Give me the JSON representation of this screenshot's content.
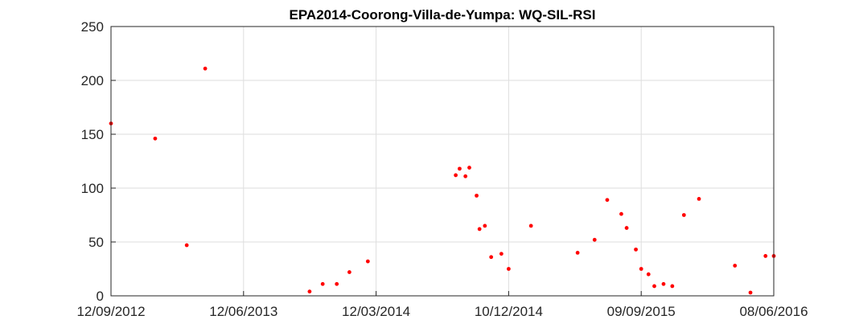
{
  "chart_data": {
    "type": "scatter",
    "title": "EPA2014-Coorong-Villa-de-Yumpa: WQ-SIL-RSI",
    "xlabel": "",
    "ylabel": "",
    "x_axis_type": "date",
    "xlim": [
      "2012-09-12",
      "2016-06-08"
    ],
    "ylim": [
      0,
      250
    ],
    "x_ticks": [
      "2012-09-12",
      "2013-06-12",
      "2014-03-12",
      "2014-12-10",
      "2015-09-09",
      "2016-06-08"
    ],
    "x_tick_labels": [
      "12/09/2012",
      "12/06/2013",
      "12/03/2014",
      "10/12/2014",
      "09/09/2015",
      "08/06/2016"
    ],
    "y_ticks": [
      0,
      50,
      100,
      150,
      200,
      250
    ],
    "y_tick_labels": [
      "0",
      "50",
      "100",
      "150",
      "200",
      "250"
    ],
    "grid": true,
    "marker_color": "#ff0000",
    "series": [
      {
        "points": [
          {
            "x": "2012-09-12",
            "y": 160
          },
          {
            "x": "2012-12-12",
            "y": 146
          },
          {
            "x": "2013-02-15",
            "y": 47
          },
          {
            "x": "2013-03-25",
            "y": 211
          },
          {
            "x": "2013-10-26",
            "y": 4
          },
          {
            "x": "2013-11-22",
            "y": 11
          },
          {
            "x": "2013-12-21",
            "y": 11
          },
          {
            "x": "2014-01-16",
            "y": 22
          },
          {
            "x": "2014-02-23",
            "y": 32
          },
          {
            "x": "2014-08-23",
            "y": 112
          },
          {
            "x": "2014-08-31",
            "y": 118
          },
          {
            "x": "2014-09-12",
            "y": 111
          },
          {
            "x": "2014-09-20",
            "y": 119
          },
          {
            "x": "2014-10-05",
            "y": 93
          },
          {
            "x": "2014-10-11",
            "y": 62
          },
          {
            "x": "2014-10-22",
            "y": 65
          },
          {
            "x": "2014-11-04",
            "y": 36
          },
          {
            "x": "2014-11-25",
            "y": 39
          },
          {
            "x": "2014-12-10",
            "y": 25
          },
          {
            "x": "2015-01-25",
            "y": 65
          },
          {
            "x": "2015-05-01",
            "y": 40
          },
          {
            "x": "2015-06-05",
            "y": 52
          },
          {
            "x": "2015-07-01",
            "y": 89
          },
          {
            "x": "2015-07-30",
            "y": 76
          },
          {
            "x": "2015-08-10",
            "y": 63
          },
          {
            "x": "2015-08-29",
            "y": 43
          },
          {
            "x": "2015-09-09",
            "y": 25
          },
          {
            "x": "2015-09-24",
            "y": 20
          },
          {
            "x": "2015-10-06",
            "y": 9
          },
          {
            "x": "2015-10-25",
            "y": 11
          },
          {
            "x": "2015-11-12",
            "y": 9
          },
          {
            "x": "2015-12-06",
            "y": 75
          },
          {
            "x": "2016-01-06",
            "y": 90
          },
          {
            "x": "2016-03-20",
            "y": 28
          },
          {
            "x": "2016-04-21",
            "y": 3
          },
          {
            "x": "2016-05-22",
            "y": 37
          },
          {
            "x": "2016-06-08",
            "y": 37
          }
        ]
      }
    ]
  }
}
